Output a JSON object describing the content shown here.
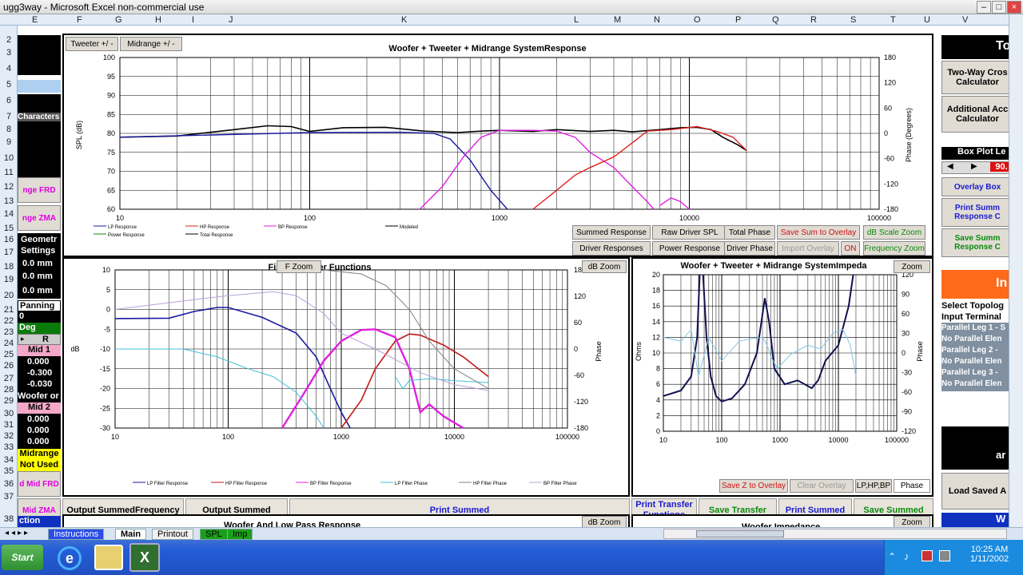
{
  "window": {
    "title": "ugg3way - Microsoft Excel non-commercial use"
  },
  "columns": [
    "E",
    "F",
    "G",
    "H",
    "I",
    "J",
    "K",
    "L",
    "M",
    "N",
    "O",
    "P",
    "Q",
    "R",
    "S",
    "T",
    "U",
    "V"
  ],
  "rows": [
    "2",
    "3",
    "4",
    "5",
    "6",
    "7",
    "8",
    "9",
    "10",
    "11",
    "12",
    "13",
    "14",
    "15",
    "16",
    "17",
    "18",
    "19",
    "20",
    "21",
    "22",
    "23",
    "24",
    "25",
    "26",
    "27",
    "28",
    "29",
    "30",
    "31",
    "32",
    "33",
    "34",
    "35",
    "36",
    "37",
    "38"
  ],
  "left": {
    "characters": "Characters",
    "range_frd": "nge FRD",
    "range_zma": "nge ZMA",
    "geometry": "Geometr",
    "settings": "Settings",
    "mm1": "0.0 mm",
    "mm2": "0.0 mm",
    "mm3": "0.0 mm",
    "panning": "Panning",
    "zero": "0",
    "deg": "Deg",
    "arrow_r": "R",
    "mid1": "Mid 1",
    "m1a": "0.000",
    "m1b": "-0.300",
    "m1c": "-0.030",
    "woofer": "Woofer or M",
    "mid2": "Mid 2",
    "m2a": "0.000",
    "m2b": "0.000",
    "m2c": "0.000",
    "midrange": "Midrange",
    "not_used": "Not Used",
    "mid_frd": "d Mid FRD",
    "mid_zma": "Mid ZMA",
    "ction": "ction"
  },
  "top": {
    "tweeter_btn": "Tweeter +/ -",
    "midrange_btn": "Midrange  +/ -"
  },
  "chart1": {
    "title": "Woofer + Tweeter + Midrange  SystemResponse",
    "ylabel": "SPL (dB)",
    "ylabel2": "Phase (Degrees)",
    "yticks": [
      "100",
      "95",
      "90",
      "85",
      "80",
      "75",
      "70",
      "65",
      "60"
    ],
    "y2ticks": [
      "180",
      "120",
      "60",
      "0",
      "-60",
      "-120",
      "-180"
    ],
    "xticks": [
      "10",
      "100",
      "1000",
      "10000",
      "100000"
    ],
    "legend": [
      "LP Response",
      "HP Response",
      "BP Response",
      "Modeled",
      "Power Response",
      "Total Response"
    ]
  },
  "chart1_buttons": {
    "summed": "Summed Response",
    "raw": "Raw Driver SPL",
    "total_phase": "Total Phase",
    "save_sum": "Save Sum to Overlay",
    "dbscale": "dB Scale Zoom",
    "driver_resp": "Driver Responses",
    "power": "Power Response",
    "driver_phase": "Driver Phase",
    "import": "Import Overlay",
    "on": "ON",
    "freqzoom": "Frequency Zoom"
  },
  "chart2": {
    "title": "Filter Transfer Functions",
    "fzoom": "F Zoom",
    "dbzoom": "dB Zoom",
    "ylabel": "dB",
    "ylabel2": "Phase",
    "yticks": [
      "10",
      "5",
      "0",
      "-5",
      "-10",
      "-15",
      "-20",
      "-25",
      "-30"
    ],
    "y2ticks": [
      "180",
      "120",
      "60",
      "0",
      "-60",
      "-120",
      "-180"
    ],
    "xticks": [
      "10",
      "100",
      "1000",
      "10000",
      "100000"
    ],
    "legend": [
      "LP Filter Response",
      "HP Filter Response",
      "BP Filter Response",
      "LP Filter Phase",
      "HP Filter Phase",
      "BP Filter Phase"
    ]
  },
  "chart3": {
    "title": "Woofer + Tweeter + Midrange  SystemImpeda",
    "zoom": "Zoom",
    "ylabel": "Ohms",
    "ylabel2": "Phase",
    "yticks": [
      "20",
      "18",
      "16",
      "14",
      "12",
      "10",
      "8",
      "6",
      "4",
      "2",
      "0"
    ],
    "y2ticks": [
      "120",
      "90",
      "60",
      "30",
      "0",
      "-30",
      "-60",
      "-90",
      "-120"
    ],
    "xticks": [
      "10",
      "100",
      "1000",
      "10000",
      "100000"
    ],
    "save_z": "Save Z to Overlay",
    "clear": "Clear Overlay",
    "lphpbp": "LP,HP,BP",
    "phase": "Phase"
  },
  "bottom_buttons": {
    "out_frd": "Output SummedFrequency\nResponse to FRD File",
    "out_zma": "Output Summed\nImpedance to ZMA File",
    "print_summed": "Print Summed\nResponse Chart",
    "print_transfer": "Print Transfer\nFunctions\nChart",
    "save_transfer": "Save Transfer\nFunction Chart",
    "print_imp": "Print Summed\nImpedance Chart",
    "save_imp": "Save Summed\nImpedance Chart"
  },
  "below": {
    "woofer_lp": "Woofer  And Low Pass Response",
    "woofer_imp": "Woofer  Impedance",
    "dbzoom": "dB Zoom",
    "zoom": "Zoom"
  },
  "right": {
    "to": "To",
    "two_way": "Two-Way Cros\nCalculator",
    "additional": "Additional Acc\nCalculator",
    "box_plot": "Box Plot Le",
    "box_val": "90.",
    "overlay_box": "Overlay Box",
    "print_summ": "Print Summ\nResponse C",
    "save_summ": "Save Summ\nResponse C",
    "in": "In",
    "select_topo": "Select Topolog",
    "input_term": "Input Terminal",
    "leg1": "Parallel Leg 1 - S",
    "nopar1": "No Parallel Elen",
    "leg2": "Parallel Leg 2 -",
    "nopar2": "No Parallel Elen",
    "leg3": "Parallel Leg 3 -",
    "nopar3": "No Parallel Elen",
    "ar": "ar",
    "load_saved": "Load Saved A",
    "w": "W"
  },
  "tabs": [
    "Instructions",
    "Main",
    "Printout",
    "SPL",
    "Imp"
  ],
  "taskbar": {
    "start": "Start",
    "time": "10:25 AM",
    "date": "1/11/2002"
  }
}
